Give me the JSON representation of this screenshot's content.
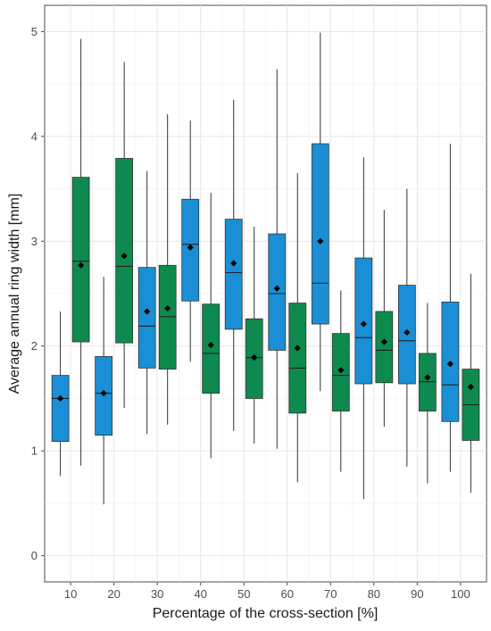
{
  "chart_data": {
    "type": "box",
    "title": "",
    "xlabel": "Percentage of the cross-section [%]",
    "ylabel": "Average annual ring width [mm]",
    "categories": [
      "10",
      "20",
      "30",
      "40",
      "50",
      "60",
      "70",
      "80",
      "90",
      "100"
    ],
    "ylim": [
      -0.25,
      5.25
    ],
    "yticks": [
      "0",
      "1",
      "2",
      "3",
      "4",
      "5"
    ],
    "grid": true,
    "legend": "none",
    "series": [
      {
        "color": "#1a8fd6",
        "boxes": [
          {
            "min": 0.76,
            "q1": 1.09,
            "median": 1.5,
            "q3": 1.72,
            "max": 2.33,
            "mean": 1.5
          },
          {
            "min": 0.49,
            "q1": 1.15,
            "median": 1.55,
            "q3": 1.9,
            "max": 2.66,
            "mean": 1.55
          },
          {
            "min": 1.16,
            "q1": 1.79,
            "median": 2.19,
            "q3": 2.75,
            "max": 3.67,
            "mean": 2.33
          },
          {
            "min": 1.85,
            "q1": 2.43,
            "median": 2.97,
            "q3": 3.4,
            "max": 4.15,
            "mean": 2.94
          },
          {
            "min": 1.19,
            "q1": 2.16,
            "median": 2.7,
            "q3": 3.21,
            "max": 4.35,
            "mean": 2.79
          },
          {
            "min": 1.02,
            "q1": 1.96,
            "median": 2.5,
            "q3": 3.07,
            "max": 4.64,
            "mean": 2.55
          },
          {
            "min": 1.57,
            "q1": 2.21,
            "median": 2.6,
            "q3": 3.93,
            "max": 4.99,
            "mean": 3.0
          },
          {
            "min": 0.54,
            "q1": 1.64,
            "median": 2.08,
            "q3": 2.84,
            "max": 3.8,
            "mean": 2.21
          },
          {
            "min": 0.85,
            "q1": 1.64,
            "median": 2.05,
            "q3": 2.58,
            "max": 3.5,
            "mean": 2.13
          },
          {
            "min": 0.8,
            "q1": 1.28,
            "median": 1.63,
            "q3": 2.42,
            "max": 3.93,
            "mean": 1.83
          }
        ]
      },
      {
        "color": "#0e8a4f",
        "boxes": [
          {
            "min": 0.86,
            "q1": 2.04,
            "median": 2.81,
            "q3": 3.61,
            "max": 4.93,
            "mean": 2.77
          },
          {
            "min": 1.41,
            "q1": 2.03,
            "median": 2.76,
            "q3": 3.79,
            "max": 4.71,
            "mean": 2.86
          },
          {
            "min": 1.25,
            "q1": 1.78,
            "median": 2.28,
            "q3": 2.77,
            "max": 4.21,
            "mean": 2.36
          },
          {
            "min": 0.93,
            "q1": 1.55,
            "median": 1.93,
            "q3": 2.4,
            "max": 3.46,
            "mean": 2.01
          },
          {
            "min": 1.07,
            "q1": 1.5,
            "median": 1.89,
            "q3": 2.26,
            "max": 3.14,
            "mean": 1.89
          },
          {
            "min": 0.7,
            "q1": 1.36,
            "median": 1.79,
            "q3": 2.41,
            "max": 3.65,
            "mean": 1.98
          },
          {
            "min": 0.8,
            "q1": 1.38,
            "median": 1.72,
            "q3": 2.12,
            "max": 2.53,
            "mean": 1.77
          },
          {
            "min": 1.23,
            "q1": 1.65,
            "median": 1.96,
            "q3": 2.33,
            "max": 3.3,
            "mean": 2.04
          },
          {
            "min": 0.69,
            "q1": 1.38,
            "median": 1.66,
            "q3": 1.93,
            "max": 2.41,
            "mean": 1.7
          },
          {
            "min": 0.6,
            "q1": 1.1,
            "median": 1.44,
            "q3": 1.78,
            "max": 2.69,
            "mean": 1.61
          }
        ]
      }
    ]
  }
}
